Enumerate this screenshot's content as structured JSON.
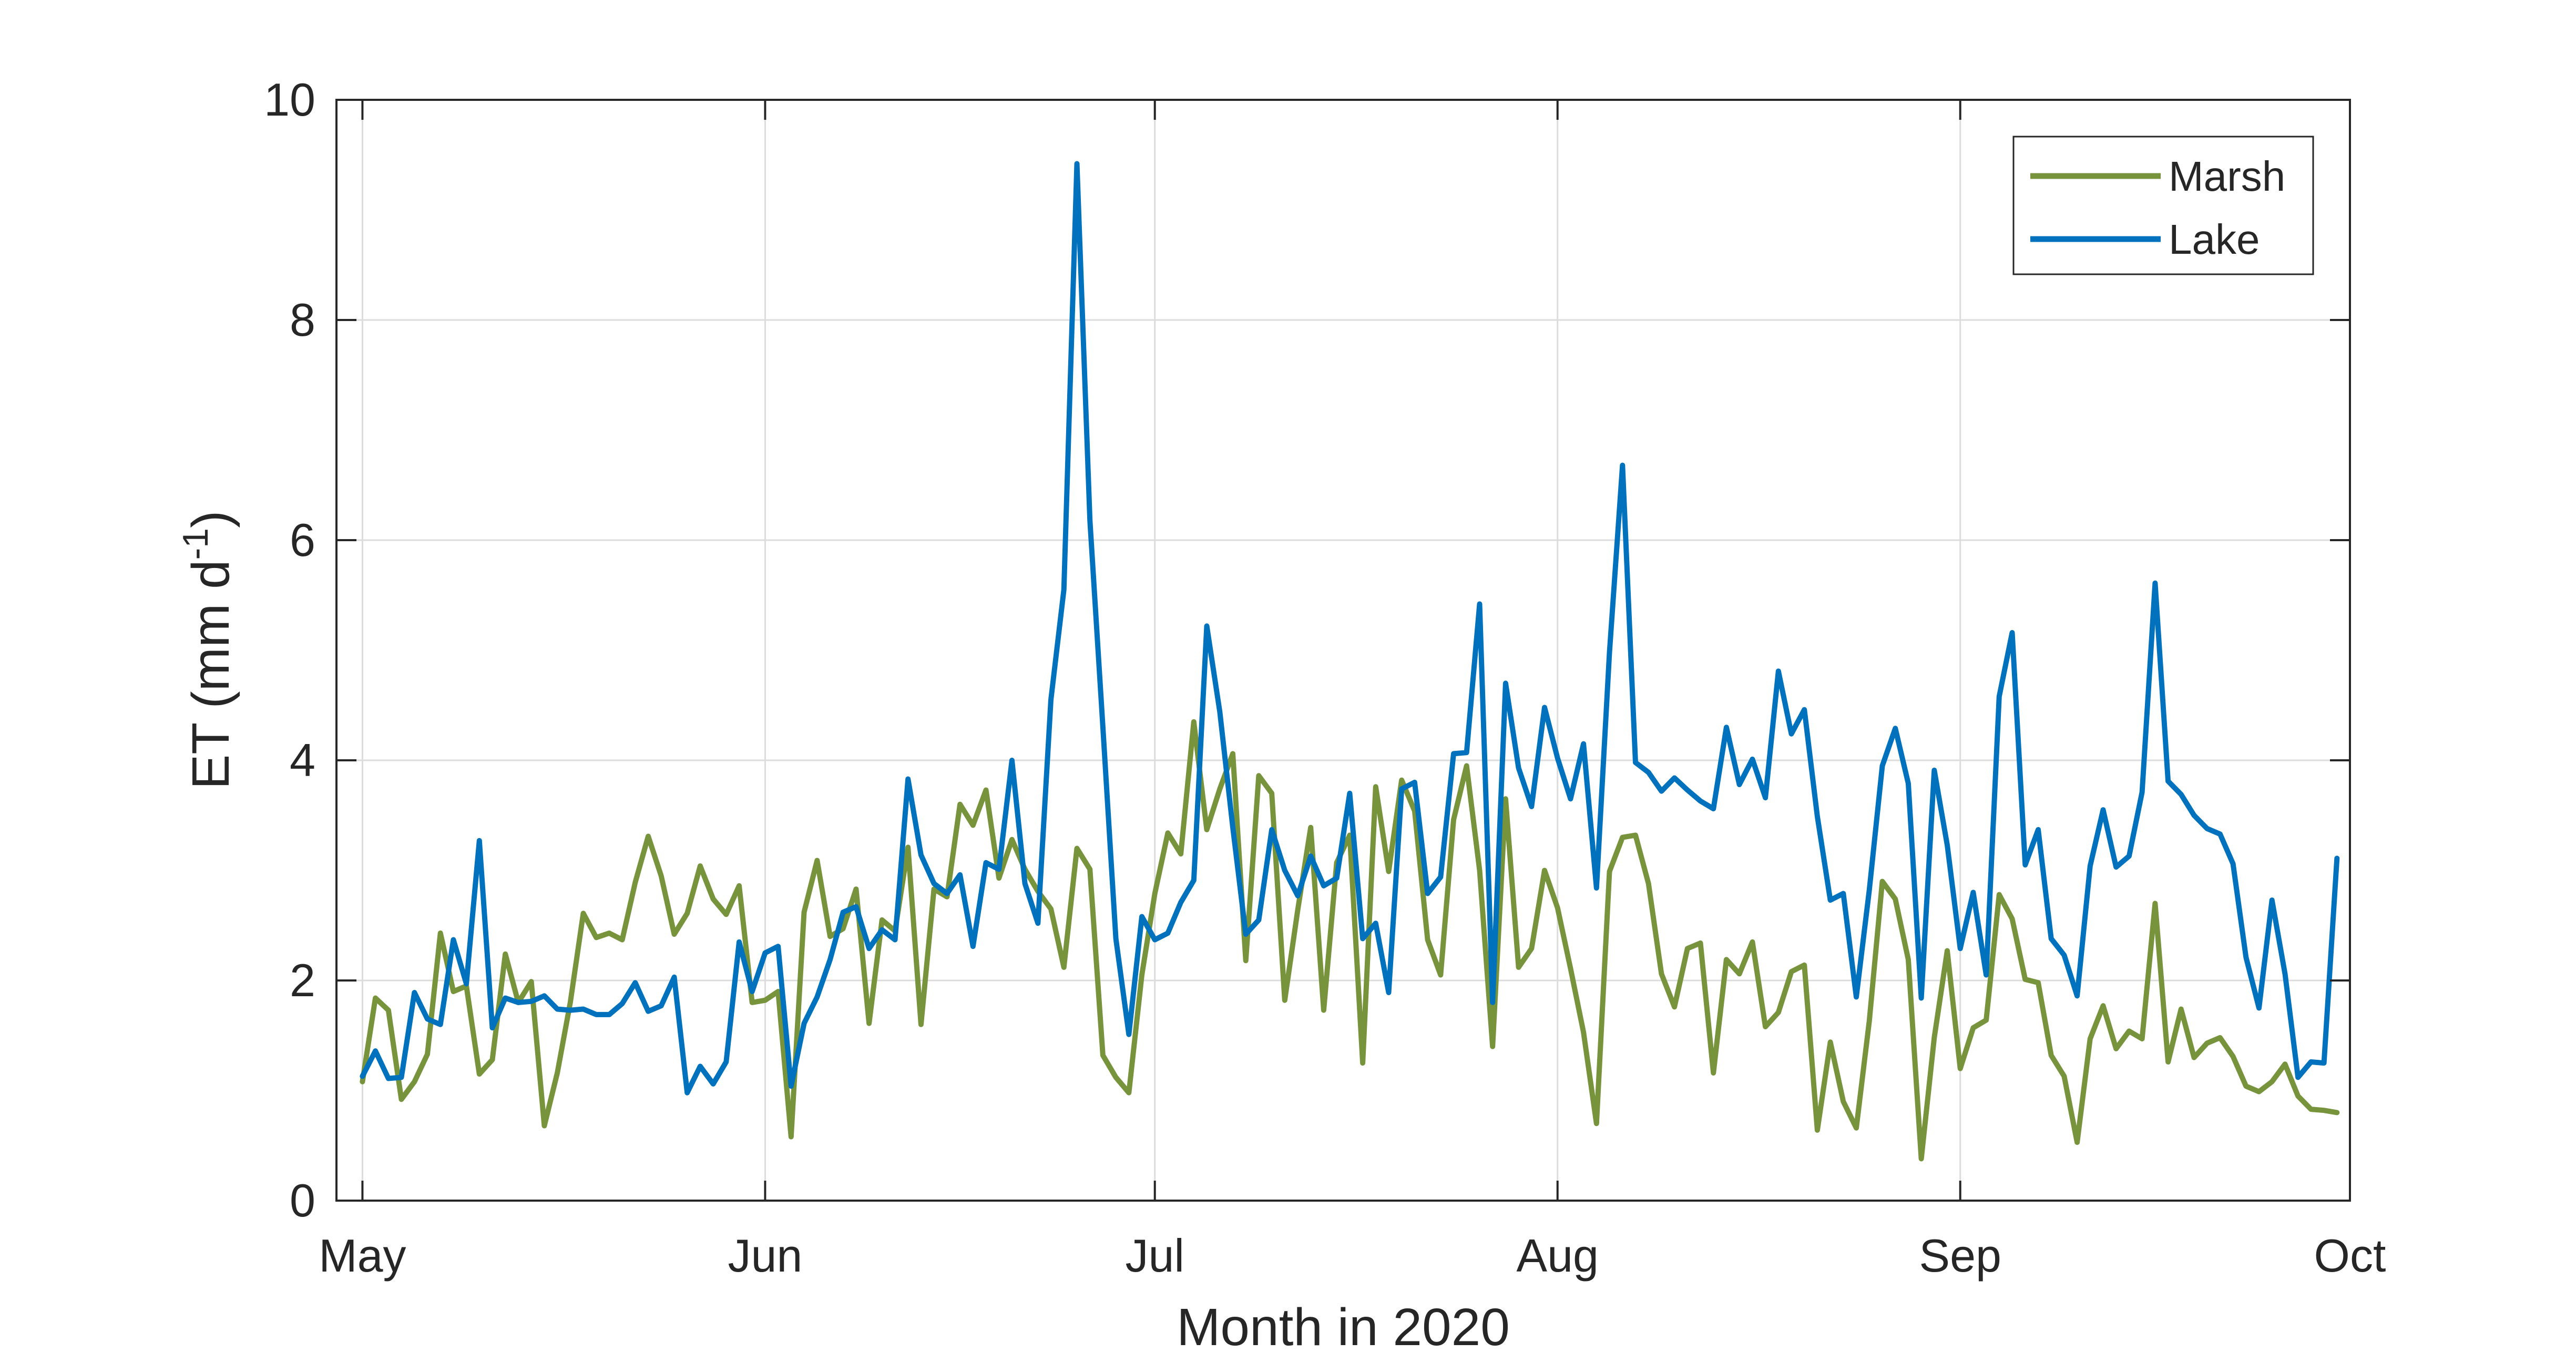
{
  "chart_data": {
    "type": "line",
    "title": "",
    "xlabel": "Month in 2020",
    "ylabel_main": "ET (mm d",
    "ylabel_sup": "-1",
    "ylabel_close": ")",
    "ylim": [
      0,
      10
    ],
    "yticks": [
      0,
      2,
      4,
      6,
      8,
      10
    ],
    "ytick_labels": [
      "0",
      "2",
      "4",
      "6",
      "8",
      "10"
    ],
    "xlim": [
      "2020-04-29",
      "2020-10-01"
    ],
    "xticks": [
      "2020-05-01",
      "2020-06-01",
      "2020-07-01",
      "2020-08-01",
      "2020-09-01",
      "2020-10-01"
    ],
    "xtick_labels": [
      "May",
      "Jun",
      "Jul",
      "Aug",
      "Sep",
      "Oct"
    ],
    "grid": true,
    "legend_position": "top-right",
    "x_start": "2020-05-01",
    "x_step_days": 1,
    "series": [
      {
        "name": "Marsh",
        "color": "#77933c",
        "values": [
          1.08,
          1.84,
          1.73,
          0.92,
          1.08,
          1.33,
          2.43,
          1.9,
          1.95,
          1.15,
          1.28,
          2.24,
          1.8,
          1.99,
          0.68,
          1.16,
          1.8,
          2.61,
          2.39,
          2.43,
          2.37,
          2.89,
          3.31,
          2.95,
          2.42,
          2.61,
          3.04,
          2.74,
          2.6,
          2.86,
          1.8,
          1.82,
          1.9,
          0.58,
          2.62,
          3.09,
          2.4,
          2.47,
          2.83,
          1.61,
          2.55,
          2.45,
          3.21,
          1.6,
          2.83,
          2.76,
          3.6,
          3.41,
          3.73,
          2.93,
          3.28,
          3.01,
          2.81,
          2.65,
          2.12,
          3.2,
          3.01,
          1.32,
          1.12,
          0.98,
          2.05,
          2.79,
          3.34,
          3.15,
          4.35,
          3.37,
          3.74,
          4.06,
          2.18,
          3.86,
          3.7,
          1.82,
          2.64,
          3.39,
          1.73,
          3.07,
          3.32,
          1.25,
          3.76,
          2.99,
          3.82,
          3.54,
          2.37,
          2.05,
          3.46,
          3.95,
          3.0,
          1.4,
          3.65,
          2.12,
          2.29,
          3.0,
          2.66,
          2.11,
          1.53,
          0.7,
          2.99,
          3.3,
          3.32,
          2.88,
          2.06,
          1.76,
          2.29,
          2.34,
          1.16,
          2.19,
          2.06,
          2.35,
          1.58,
          1.71,
          2.08,
          2.14,
          0.64,
          1.44,
          0.9,
          0.66,
          1.63,
          2.9,
          2.74,
          2.19,
          0.38,
          1.48,
          2.27,
          1.2,
          1.57,
          1.64,
          2.78,
          2.56,
          2.01,
          1.98,
          1.32,
          1.13,
          0.53,
          1.47,
          1.77,
          1.38,
          1.54,
          1.47,
          2.7,
          1.26,
          1.74,
          1.3,
          1.43,
          1.48,
          1.31,
          1.04,
          0.99,
          1.08,
          1.24,
          0.95,
          0.83,
          0.82,
          0.8
        ]
      },
      {
        "name": "Lake",
        "color": "#0072bd",
        "values": [
          1.13,
          1.36,
          1.11,
          1.12,
          1.89,
          1.65,
          1.6,
          2.37,
          1.97,
          3.27,
          1.57,
          1.84,
          1.8,
          1.81,
          1.86,
          1.74,
          1.73,
          1.74,
          1.69,
          1.69,
          1.79,
          1.98,
          1.72,
          1.77,
          2.03,
          0.98,
          1.22,
          1.06,
          1.26,
          2.35,
          1.9,
          2.25,
          2.31,
          1.04,
          1.61,
          1.85,
          2.19,
          2.62,
          2.67,
          2.29,
          2.46,
          2.37,
          3.83,
          3.14,
          2.88,
          2.79,
          2.96,
          2.31,
          3.07,
          3.01,
          4.0,
          2.88,
          2.52,
          4.55,
          5.55,
          9.42,
          6.18,
          4.3,
          2.38,
          1.51,
          2.58,
          2.37,
          2.43,
          2.71,
          2.91,
          5.22,
          4.44,
          3.39,
          2.42,
          2.55,
          3.37,
          3.0,
          2.77,
          3.13,
          2.86,
          2.93,
          3.7,
          2.38,
          2.52,
          1.89,
          3.74,
          3.8,
          2.79,
          2.94,
          4.06,
          4.07,
          5.42,
          1.8,
          4.7,
          3.93,
          3.58,
          4.48,
          4.02,
          3.65,
          4.15,
          2.84,
          4.98,
          6.68,
          3.98,
          3.89,
          3.72,
          3.84,
          3.73,
          3.63,
          3.56,
          4.3,
          3.78,
          4.01,
          3.66,
          4.81,
          4.24,
          4.46,
          3.49,
          2.73,
          2.79,
          1.85,
          2.82,
          3.95,
          4.29,
          3.79,
          1.84,
          3.91,
          3.23,
          2.29,
          2.8,
          2.05,
          4.58,
          5.16,
          3.05,
          3.37,
          2.38,
          2.23,
          1.86,
          3.04,
          3.55,
          3.03,
          3.13,
          3.71,
          5.61,
          3.81,
          3.69,
          3.5,
          3.38,
          3.33,
          3.06,
          2.21,
          1.75,
          2.73,
          2.06,
          1.12,
          1.26,
          1.25,
          3.11
        ]
      }
    ]
  }
}
